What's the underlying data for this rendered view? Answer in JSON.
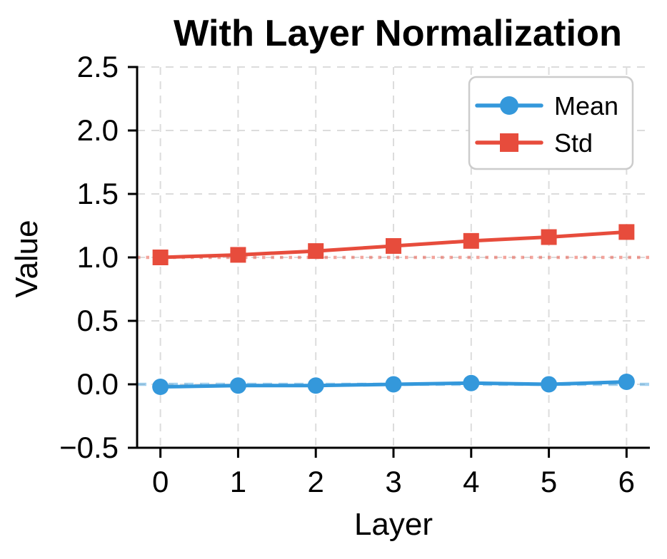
{
  "chart_data": {
    "type": "line",
    "title": "With Layer Normalization",
    "xlabel": "Layer",
    "ylabel": "Value",
    "x": [
      0,
      1,
      2,
      3,
      4,
      5,
      6
    ],
    "series": [
      {
        "name": "Mean",
        "color": "#3498db",
        "marker": "circle",
        "values": [
          -0.02,
          -0.01,
          -0.01,
          0.0,
          0.01,
          0.0,
          0.02
        ]
      },
      {
        "name": "Std",
        "color": "#e74c3c",
        "marker": "square",
        "values": [
          1.0,
          1.02,
          1.05,
          1.09,
          1.13,
          1.16,
          1.2
        ]
      }
    ],
    "ref_lines": [
      {
        "y": 0.0,
        "color": "#3498db",
        "style": "dashed"
      },
      {
        "y": 1.0,
        "color": "#e74c3c",
        "style": "dotted"
      }
    ],
    "xlim": [
      -0.3,
      6.3
    ],
    "ylim": [
      -0.5,
      2.5
    ],
    "xticks": [
      0,
      1,
      2,
      3,
      4,
      5,
      6
    ],
    "yticks": [
      -0.5,
      0.0,
      0.5,
      1.0,
      1.5,
      2.0,
      2.5
    ],
    "grid": true,
    "grid_color": "#dcdcdc",
    "axis_color": "#000000",
    "text_color": "#000000",
    "background": "#ffffff",
    "legend": {
      "position": "upper right"
    }
  }
}
